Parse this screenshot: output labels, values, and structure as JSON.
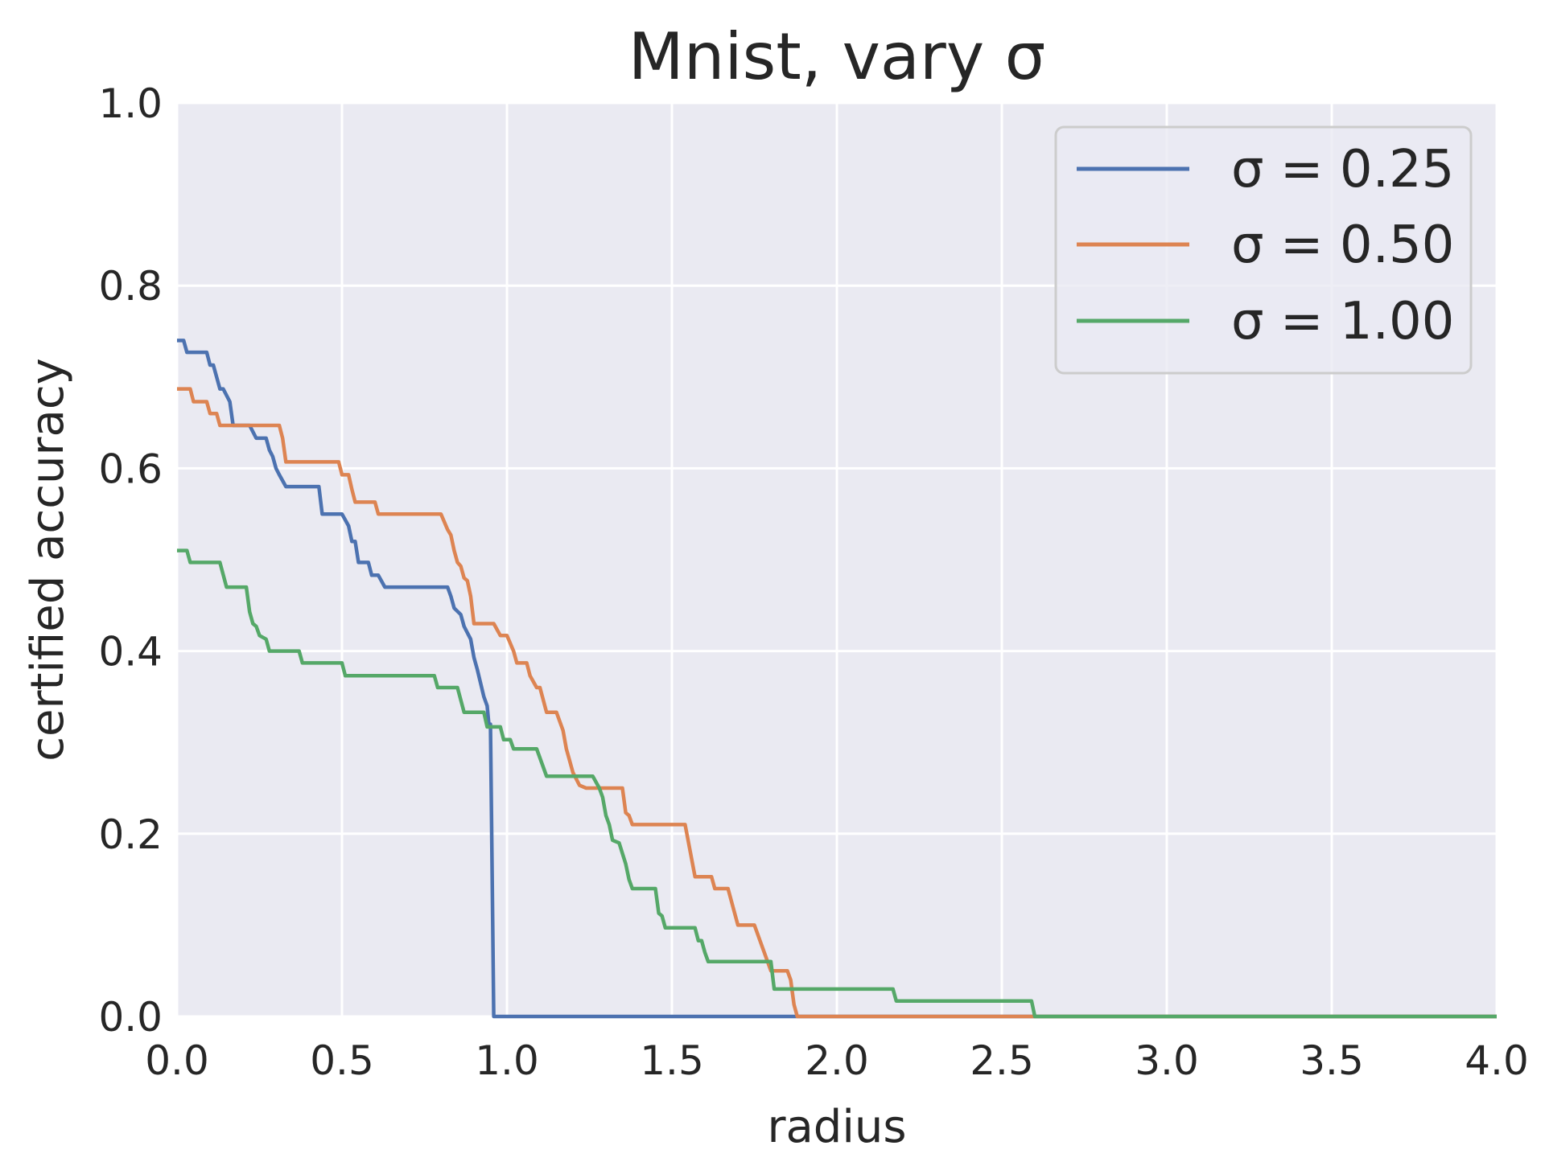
{
  "chart_data": {
    "type": "line",
    "title": "Mnist, vary σ",
    "xlabel": "radius",
    "ylabel": "certified accuracy",
    "xlim": [
      0.0,
      4.0
    ],
    "ylim": [
      0.0,
      1.0
    ],
    "xticks": [
      "0.0",
      "0.5",
      "1.0",
      "1.5",
      "2.0",
      "2.5",
      "3.0",
      "3.5",
      "4.0"
    ],
    "yticks": [
      "0.0",
      "0.2",
      "0.4",
      "0.6",
      "0.8",
      "1.0"
    ],
    "grid": true,
    "legend_position": "top-right",
    "series": [
      {
        "name": "σ = 0.25",
        "color": "#4c72b0",
        "points": [
          [
            0.0,
            0.74
          ],
          [
            0.02,
            0.74
          ],
          [
            0.03,
            0.727
          ],
          [
            0.09,
            0.727
          ],
          [
            0.1,
            0.713
          ],
          [
            0.11,
            0.713
          ],
          [
            0.12,
            0.7
          ],
          [
            0.13,
            0.687
          ],
          [
            0.14,
            0.687
          ],
          [
            0.16,
            0.673
          ],
          [
            0.17,
            0.647
          ],
          [
            0.22,
            0.647
          ],
          [
            0.24,
            0.633
          ],
          [
            0.27,
            0.633
          ],
          [
            0.28,
            0.62
          ],
          [
            0.29,
            0.613
          ],
          [
            0.3,
            0.6
          ],
          [
            0.31,
            0.593
          ],
          [
            0.33,
            0.58
          ],
          [
            0.43,
            0.58
          ],
          [
            0.44,
            0.55
          ],
          [
            0.5,
            0.55
          ],
          [
            0.52,
            0.537
          ],
          [
            0.53,
            0.52
          ],
          [
            0.54,
            0.52
          ],
          [
            0.55,
            0.497
          ],
          [
            0.58,
            0.497
          ],
          [
            0.59,
            0.483
          ],
          [
            0.61,
            0.483
          ],
          [
            0.63,
            0.47
          ],
          [
            0.82,
            0.47
          ],
          [
            0.83,
            0.46
          ],
          [
            0.84,
            0.447
          ],
          [
            0.86,
            0.44
          ],
          [
            0.87,
            0.427
          ],
          [
            0.88,
            0.42
          ],
          [
            0.89,
            0.413
          ],
          [
            0.9,
            0.393
          ],
          [
            0.91,
            0.38
          ],
          [
            0.93,
            0.35
          ],
          [
            0.94,
            0.34
          ],
          [
            0.945,
            0.32
          ],
          [
            0.95,
            0.32
          ],
          [
            0.96,
            0.0
          ],
          [
            4.0,
            0.0
          ]
        ]
      },
      {
        "name": "σ = 0.50",
        "color": "#dd8452",
        "points": [
          [
            0.0,
            0.687
          ],
          [
            0.04,
            0.687
          ],
          [
            0.05,
            0.673
          ],
          [
            0.09,
            0.673
          ],
          [
            0.1,
            0.66
          ],
          [
            0.12,
            0.66
          ],
          [
            0.13,
            0.647
          ],
          [
            0.31,
            0.647
          ],
          [
            0.32,
            0.633
          ],
          [
            0.33,
            0.607
          ],
          [
            0.49,
            0.607
          ],
          [
            0.5,
            0.593
          ],
          [
            0.52,
            0.593
          ],
          [
            0.53,
            0.577
          ],
          [
            0.54,
            0.563
          ],
          [
            0.6,
            0.563
          ],
          [
            0.61,
            0.55
          ],
          [
            0.8,
            0.55
          ],
          [
            0.82,
            0.533
          ],
          [
            0.83,
            0.527
          ],
          [
            0.84,
            0.51
          ],
          [
            0.85,
            0.497
          ],
          [
            0.86,
            0.493
          ],
          [
            0.87,
            0.48
          ],
          [
            0.88,
            0.477
          ],
          [
            0.89,
            0.46
          ],
          [
            0.9,
            0.43
          ],
          [
            0.96,
            0.43
          ],
          [
            0.98,
            0.417
          ],
          [
            1.0,
            0.417
          ],
          [
            1.02,
            0.4
          ],
          [
            1.03,
            0.387
          ],
          [
            1.06,
            0.387
          ],
          [
            1.07,
            0.373
          ],
          [
            1.09,
            0.36
          ],
          [
            1.1,
            0.36
          ],
          [
            1.12,
            0.333
          ],
          [
            1.15,
            0.333
          ],
          [
            1.17,
            0.313
          ],
          [
            1.18,
            0.293
          ],
          [
            1.19,
            0.28
          ],
          [
            1.2,
            0.267
          ],
          [
            1.22,
            0.253
          ],
          [
            1.24,
            0.25
          ],
          [
            1.35,
            0.25
          ],
          [
            1.36,
            0.223
          ],
          [
            1.37,
            0.22
          ],
          [
            1.38,
            0.21
          ],
          [
            1.54,
            0.21
          ],
          [
            1.57,
            0.153
          ],
          [
            1.62,
            0.153
          ],
          [
            1.63,
            0.14
          ],
          [
            1.67,
            0.14
          ],
          [
            1.7,
            0.1
          ],
          [
            1.75,
            0.1
          ],
          [
            1.77,
            0.08
          ],
          [
            1.8,
            0.05
          ],
          [
            1.85,
            0.05
          ],
          [
            1.86,
            0.04
          ],
          [
            1.87,
            0.013
          ],
          [
            1.88,
            0.0
          ],
          [
            4.0,
            0.0
          ]
        ]
      },
      {
        "name": "σ = 1.00",
        "color": "#55a868",
        "points": [
          [
            0.0,
            0.51
          ],
          [
            0.03,
            0.51
          ],
          [
            0.04,
            0.497
          ],
          [
            0.13,
            0.497
          ],
          [
            0.15,
            0.47
          ],
          [
            0.21,
            0.47
          ],
          [
            0.22,
            0.443
          ],
          [
            0.23,
            0.43
          ],
          [
            0.24,
            0.427
          ],
          [
            0.25,
            0.417
          ],
          [
            0.27,
            0.413
          ],
          [
            0.28,
            0.4
          ],
          [
            0.37,
            0.4
          ],
          [
            0.38,
            0.387
          ],
          [
            0.5,
            0.387
          ],
          [
            0.51,
            0.373
          ],
          [
            0.78,
            0.373
          ],
          [
            0.79,
            0.36
          ],
          [
            0.85,
            0.36
          ],
          [
            0.87,
            0.333
          ],
          [
            0.93,
            0.333
          ],
          [
            0.94,
            0.317
          ],
          [
            0.98,
            0.317
          ],
          [
            0.99,
            0.303
          ],
          [
            1.01,
            0.303
          ],
          [
            1.02,
            0.293
          ],
          [
            1.09,
            0.293
          ],
          [
            1.12,
            0.263
          ],
          [
            1.26,
            0.263
          ],
          [
            1.28,
            0.25
          ],
          [
            1.29,
            0.24
          ],
          [
            1.3,
            0.22
          ],
          [
            1.31,
            0.21
          ],
          [
            1.32,
            0.193
          ],
          [
            1.34,
            0.19
          ],
          [
            1.36,
            0.167
          ],
          [
            1.37,
            0.15
          ],
          [
            1.38,
            0.14
          ],
          [
            1.45,
            0.14
          ],
          [
            1.46,
            0.113
          ],
          [
            1.47,
            0.11
          ],
          [
            1.48,
            0.097
          ],
          [
            1.57,
            0.097
          ],
          [
            1.58,
            0.083
          ],
          [
            1.59,
            0.083
          ],
          [
            1.6,
            0.07
          ],
          [
            1.61,
            0.06
          ],
          [
            1.8,
            0.06
          ],
          [
            1.81,
            0.03
          ],
          [
            2.17,
            0.03
          ],
          [
            2.18,
            0.017
          ],
          [
            2.59,
            0.017
          ],
          [
            2.6,
            0.0
          ],
          [
            4.0,
            0.0
          ]
        ]
      }
    ]
  }
}
